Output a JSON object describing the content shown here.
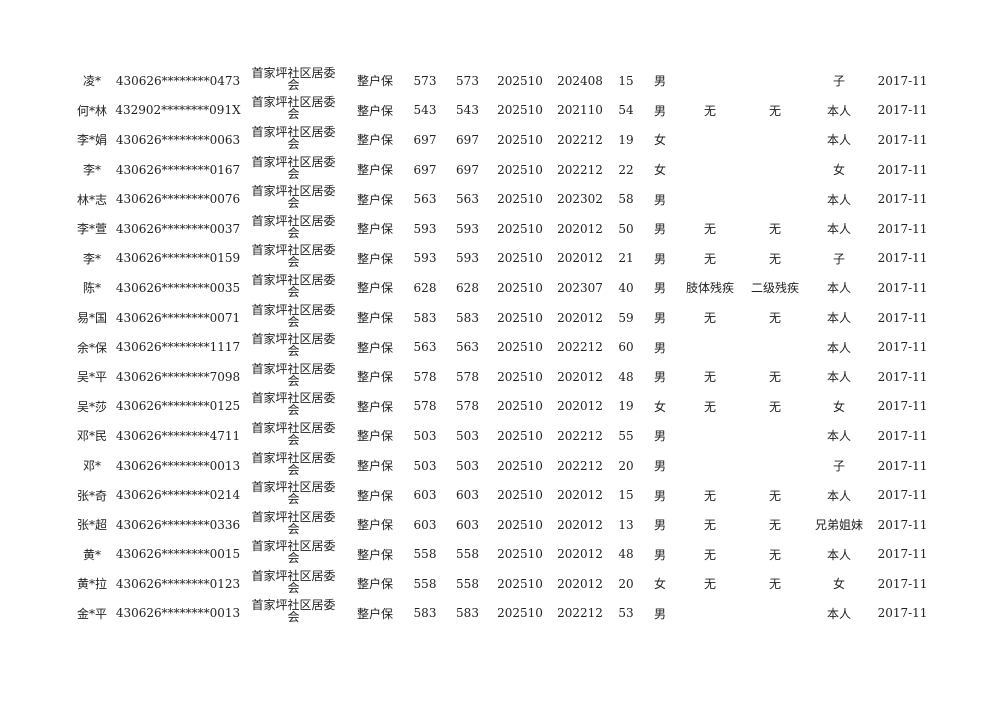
{
  "rows": [
    {
      "name": "凌*",
      "id": "430626********0473",
      "community": "首家坪社区居委会",
      "type": "整户保",
      "v1": "573",
      "v2": "573",
      "m1": "202510",
      "m2": "202408",
      "age": "15",
      "sex": "男",
      "dis_type": "",
      "dis_level": "",
      "relation": "子",
      "date": "2017-11"
    },
    {
      "name": "何*林",
      "id": "432902********091X",
      "community": "首家坪社区居委会",
      "type": "整户保",
      "v1": "543",
      "v2": "543",
      "m1": "202510",
      "m2": "202110",
      "age": "54",
      "sex": "男",
      "dis_type": "无",
      "dis_level": "无",
      "relation": "本人",
      "date": "2017-11"
    },
    {
      "name": "李*娟",
      "id": "430626********0063",
      "community": "首家坪社区居委会",
      "type": "整户保",
      "v1": "697",
      "v2": "697",
      "m1": "202510",
      "m2": "202212",
      "age": "19",
      "sex": "女",
      "dis_type": "",
      "dis_level": "",
      "relation": "本人",
      "date": "2017-11"
    },
    {
      "name": "李*",
      "id": "430626********0167",
      "community": "首家坪社区居委会",
      "type": "整户保",
      "v1": "697",
      "v2": "697",
      "m1": "202510",
      "m2": "202212",
      "age": "22",
      "sex": "女",
      "dis_type": "",
      "dis_level": "",
      "relation": "女",
      "date": "2017-11"
    },
    {
      "name": "林*志",
      "id": "430626********0076",
      "community": "首家坪社区居委会",
      "type": "整户保",
      "v1": "563",
      "v2": "563",
      "m1": "202510",
      "m2": "202302",
      "age": "58",
      "sex": "男",
      "dis_type": "",
      "dis_level": "",
      "relation": "本人",
      "date": "2017-11"
    },
    {
      "name": "李*萱",
      "id": "430626********0037",
      "community": "首家坪社区居委会",
      "type": "整户保",
      "v1": "593",
      "v2": "593",
      "m1": "202510",
      "m2": "202012",
      "age": "50",
      "sex": "男",
      "dis_type": "无",
      "dis_level": "无",
      "relation": "本人",
      "date": "2017-11"
    },
    {
      "name": "李*",
      "id": "430626********0159",
      "community": "首家坪社区居委会",
      "type": "整户保",
      "v1": "593",
      "v2": "593",
      "m1": "202510",
      "m2": "202012",
      "age": "21",
      "sex": "男",
      "dis_type": "无",
      "dis_level": "无",
      "relation": "子",
      "date": "2017-11"
    },
    {
      "name": "陈*",
      "id": "430626********0035",
      "community": "首家坪社区居委会",
      "type": "整户保",
      "v1": "628",
      "v2": "628",
      "m1": "202510",
      "m2": "202307",
      "age": "40",
      "sex": "男",
      "dis_type": "肢体残疾",
      "dis_level": "二级残疾",
      "relation": "本人",
      "date": "2017-11"
    },
    {
      "name": "易*国",
      "id": "430626********0071",
      "community": "首家坪社区居委会",
      "type": "整户保",
      "v1": "583",
      "v2": "583",
      "m1": "202510",
      "m2": "202012",
      "age": "59",
      "sex": "男",
      "dis_type": "无",
      "dis_level": "无",
      "relation": "本人",
      "date": "2017-11"
    },
    {
      "name": "余*保",
      "id": "430626********1117",
      "community": "首家坪社区居委会",
      "type": "整户保",
      "v1": "563",
      "v2": "563",
      "m1": "202510",
      "m2": "202212",
      "age": "60",
      "sex": "男",
      "dis_type": "",
      "dis_level": "",
      "relation": "本人",
      "date": "2017-11"
    },
    {
      "name": "吴*平",
      "id": "430626********7098",
      "community": "首家坪社区居委会",
      "type": "整户保",
      "v1": "578",
      "v2": "578",
      "m1": "202510",
      "m2": "202012",
      "age": "48",
      "sex": "男",
      "dis_type": "无",
      "dis_level": "无",
      "relation": "本人",
      "date": "2017-11"
    },
    {
      "name": "吴*莎",
      "id": "430626********0125",
      "community": "首家坪社区居委会",
      "type": "整户保",
      "v1": "578",
      "v2": "578",
      "m1": "202510",
      "m2": "202012",
      "age": "19",
      "sex": "女",
      "dis_type": "无",
      "dis_level": "无",
      "relation": "女",
      "date": "2017-11"
    },
    {
      "name": "邓*民",
      "id": "430626********4711",
      "community": "首家坪社区居委会",
      "type": "整户保",
      "v1": "503",
      "v2": "503",
      "m1": "202510",
      "m2": "202212",
      "age": "55",
      "sex": "男",
      "dis_type": "",
      "dis_level": "",
      "relation": "本人",
      "date": "2017-11"
    },
    {
      "name": "邓*",
      "id": "430626********0013",
      "community": "首家坪社区居委会",
      "type": "整户保",
      "v1": "503",
      "v2": "503",
      "m1": "202510",
      "m2": "202212",
      "age": "20",
      "sex": "男",
      "dis_type": "",
      "dis_level": "",
      "relation": "子",
      "date": "2017-11"
    },
    {
      "name": "张*奇",
      "id": "430626********0214",
      "community": "首家坪社区居委会",
      "type": "整户保",
      "v1": "603",
      "v2": "603",
      "m1": "202510",
      "m2": "202012",
      "age": "15",
      "sex": "男",
      "dis_type": "无",
      "dis_level": "无",
      "relation": "本人",
      "date": "2017-11"
    },
    {
      "name": "张*超",
      "id": "430626********0336",
      "community": "首家坪社区居委会",
      "type": "整户保",
      "v1": "603",
      "v2": "603",
      "m1": "202510",
      "m2": "202012",
      "age": "13",
      "sex": "男",
      "dis_type": "无",
      "dis_level": "无",
      "relation": "兄弟姐妹",
      "date": "2017-11"
    },
    {
      "name": "黄*",
      "id": "430626********0015",
      "community": "首家坪社区居委会",
      "type": "整户保",
      "v1": "558",
      "v2": "558",
      "m1": "202510",
      "m2": "202012",
      "age": "48",
      "sex": "男",
      "dis_type": "无",
      "dis_level": "无",
      "relation": "本人",
      "date": "2017-11"
    },
    {
      "name": "黄*拉",
      "id": "430626********0123",
      "community": "首家坪社区居委会",
      "type": "整户保",
      "v1": "558",
      "v2": "558",
      "m1": "202510",
      "m2": "202012",
      "age": "20",
      "sex": "女",
      "dis_type": "无",
      "dis_level": "无",
      "relation": "女",
      "date": "2017-11"
    },
    {
      "name": "金*平",
      "id": "430626********0013",
      "community": "首家坪社区居委会",
      "type": "整户保",
      "v1": "583",
      "v2": "583",
      "m1": "202510",
      "m2": "202212",
      "age": "53",
      "sex": "男",
      "dis_type": "",
      "dis_level": "",
      "relation": "本人",
      "date": "2017-11"
    }
  ]
}
